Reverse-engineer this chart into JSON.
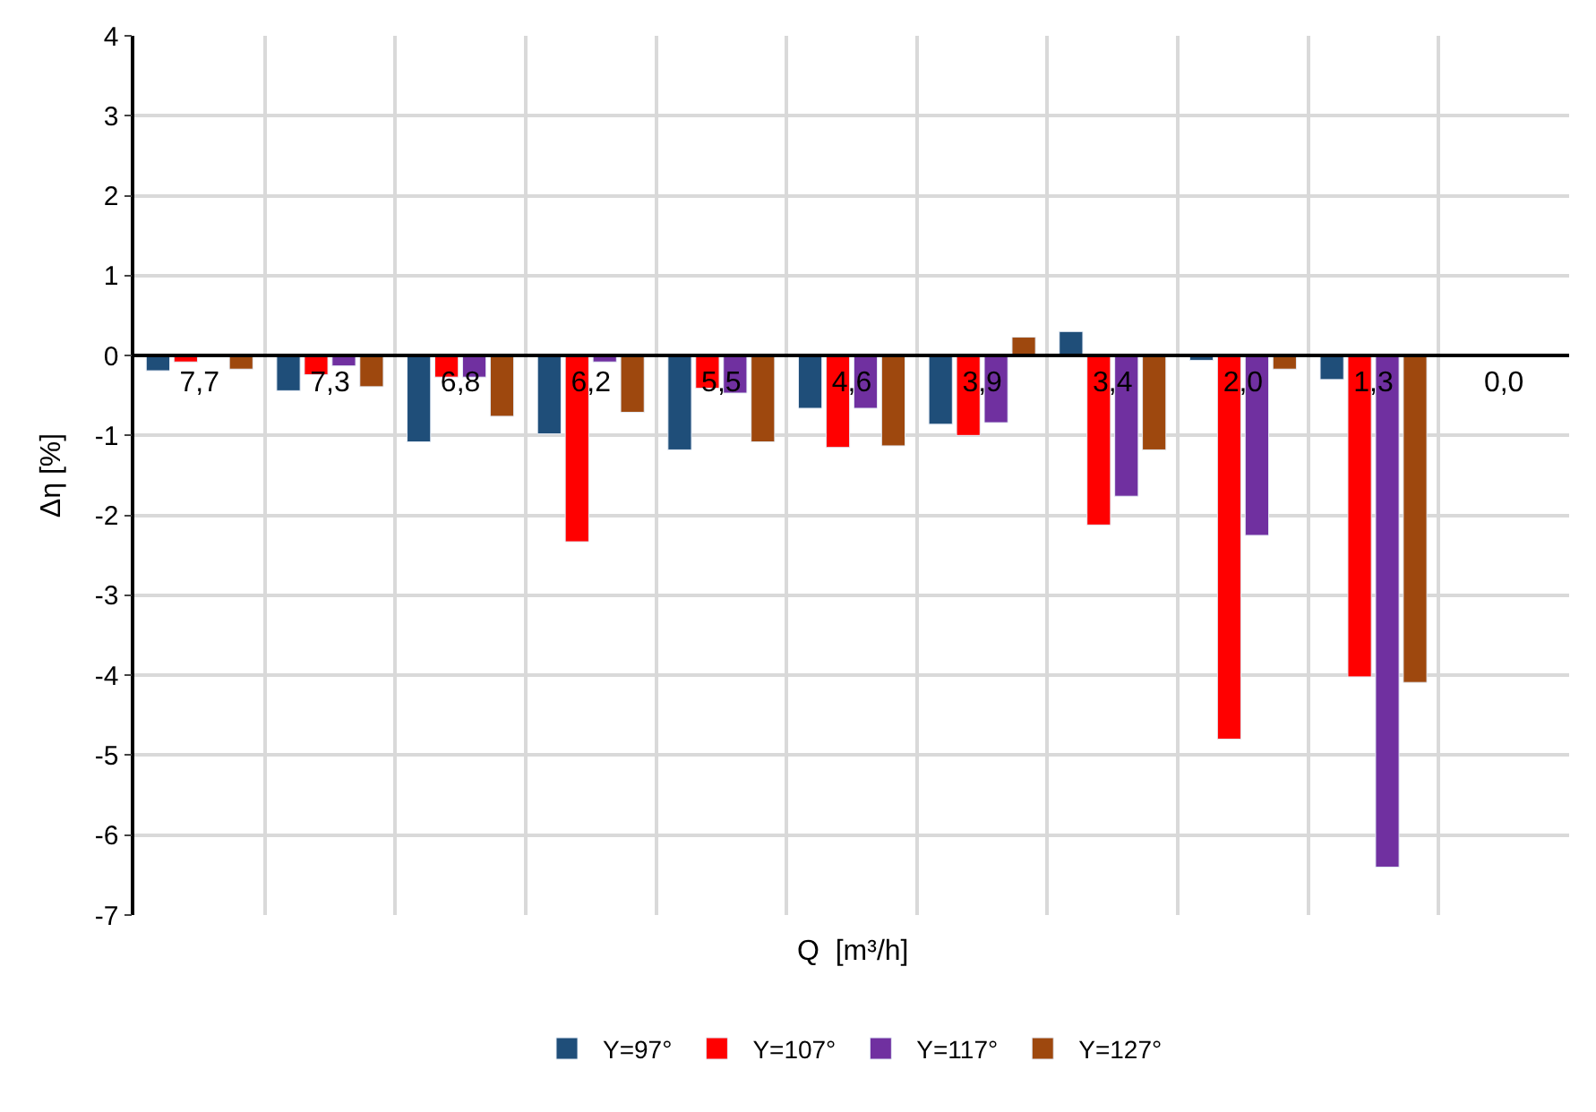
{
  "chart_data": {
    "type": "bar",
    "xlabel": "Q  [m³/h]",
    "ylabel": "Δη [%]",
    "categories": [
      "7,7",
      "7,3",
      "6,8",
      "6,2",
      "5,5",
      "4,6",
      "3,9",
      "3,4",
      "2,0",
      "1,3",
      "0,0"
    ],
    "series": [
      {
        "name": "Y=97°",
        "color": "#1f4e79",
        "values": [
          -0.19,
          -0.44,
          -1.08,
          -0.98,
          -1.18,
          -0.66,
          -0.86,
          0.3,
          -0.06,
          -0.3,
          null
        ]
      },
      {
        "name": "Y=107°",
        "color": "#ff0000",
        "values": [
          -0.08,
          -0.24,
          -0.27,
          -2.33,
          -0.41,
          -1.15,
          -1.0,
          -2.12,
          -4.8,
          -4.02,
          null
        ]
      },
      {
        "name": "Y=117°",
        "color": "#7030a0",
        "values": [
          null,
          -0.13,
          -0.27,
          -0.08,
          -0.47,
          -0.66,
          -0.84,
          -1.76,
          -2.25,
          -6.4,
          null
        ]
      },
      {
        "name": "Y=127°",
        "color": "#9e480e",
        "values": [
          -0.17,
          -0.39,
          -0.76,
          -0.71,
          -1.08,
          -1.13,
          0.23,
          -1.18,
          -0.17,
          -4.09,
          null
        ]
      }
    ],
    "ylim": [
      -7,
      4
    ],
    "yticks": [
      -7,
      -6,
      -5,
      -4,
      -3,
      -2,
      -1,
      0,
      1,
      2,
      3,
      4
    ],
    "grid": true,
    "legend": "bottom"
  }
}
